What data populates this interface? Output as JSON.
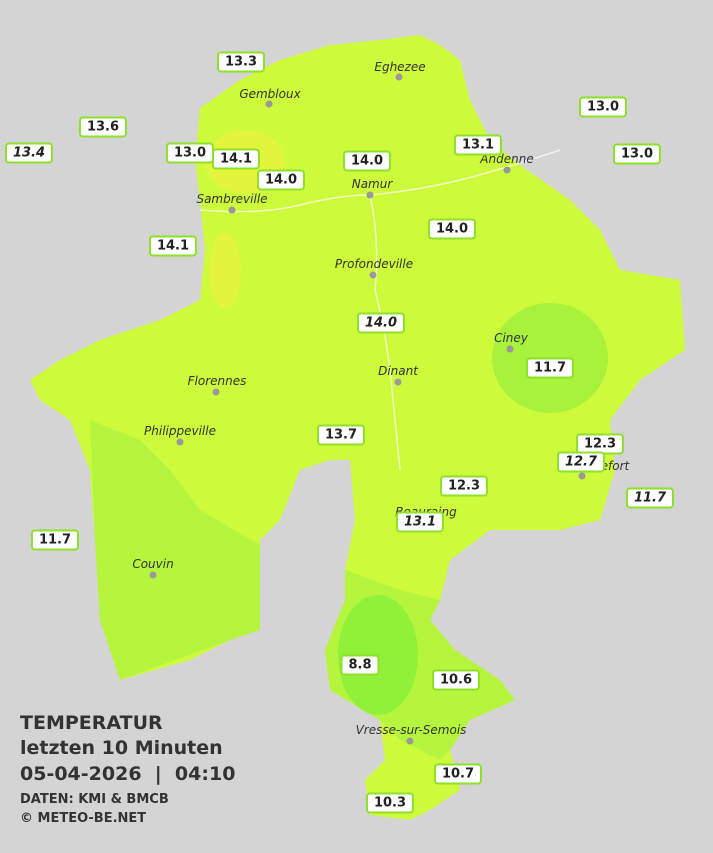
{
  "legend": {
    "title": "TEMPERATUR",
    "period": "letzten 10 Minuten",
    "datetime": "05-04-2026  |  04:10",
    "source": "DATEN: KMI & BMCB",
    "copyright": "© METEO-BE.NET"
  },
  "towns": [
    {
      "name": "Eghezee"
    },
    {
      "name": "Gembloux"
    },
    {
      "name": "Andenne"
    },
    {
      "name": "Namur"
    },
    {
      "name": "Sambreville"
    },
    {
      "name": "Profondeville"
    },
    {
      "name": "Ciney"
    },
    {
      "name": "Dinant"
    },
    {
      "name": "Florennes"
    },
    {
      "name": "Philippeville"
    },
    {
      "name": "Rochefort"
    },
    {
      "name": "Beauraing"
    },
    {
      "name": "Couvin"
    },
    {
      "name": "Vresse-sur-Semois"
    }
  ],
  "stations": [
    {
      "value": "13.3",
      "italic": false
    },
    {
      "value": "13.6",
      "italic": false
    },
    {
      "value": "13.4",
      "italic": true
    },
    {
      "value": "13.0",
      "italic": false
    },
    {
      "value": "14.1",
      "italic": false
    },
    {
      "value": "14.0",
      "italic": false
    },
    {
      "value": "14.0",
      "italic": false
    },
    {
      "value": "13.1",
      "italic": false
    },
    {
      "value": "13.0",
      "italic": false
    },
    {
      "value": "13.0",
      "italic": false
    },
    {
      "value": "14.0",
      "italic": false
    },
    {
      "value": "14.1",
      "italic": false
    },
    {
      "value": "14.0",
      "italic": true
    },
    {
      "value": "11.7",
      "italic": false
    },
    {
      "value": "13.7",
      "italic": false
    },
    {
      "value": "12.3",
      "italic": false
    },
    {
      "value": "12.7",
      "italic": true
    },
    {
      "value": "11.7",
      "italic": true
    },
    {
      "value": "12.3",
      "italic": false
    },
    {
      "value": "13.1",
      "italic": true
    },
    {
      "value": "11.7",
      "italic": false
    },
    {
      "value": "8.8",
      "italic": false
    },
    {
      "value": "10.6",
      "italic": false
    },
    {
      "value": "10.7",
      "italic": false
    },
    {
      "value": "10.3",
      "italic": false
    }
  ]
}
